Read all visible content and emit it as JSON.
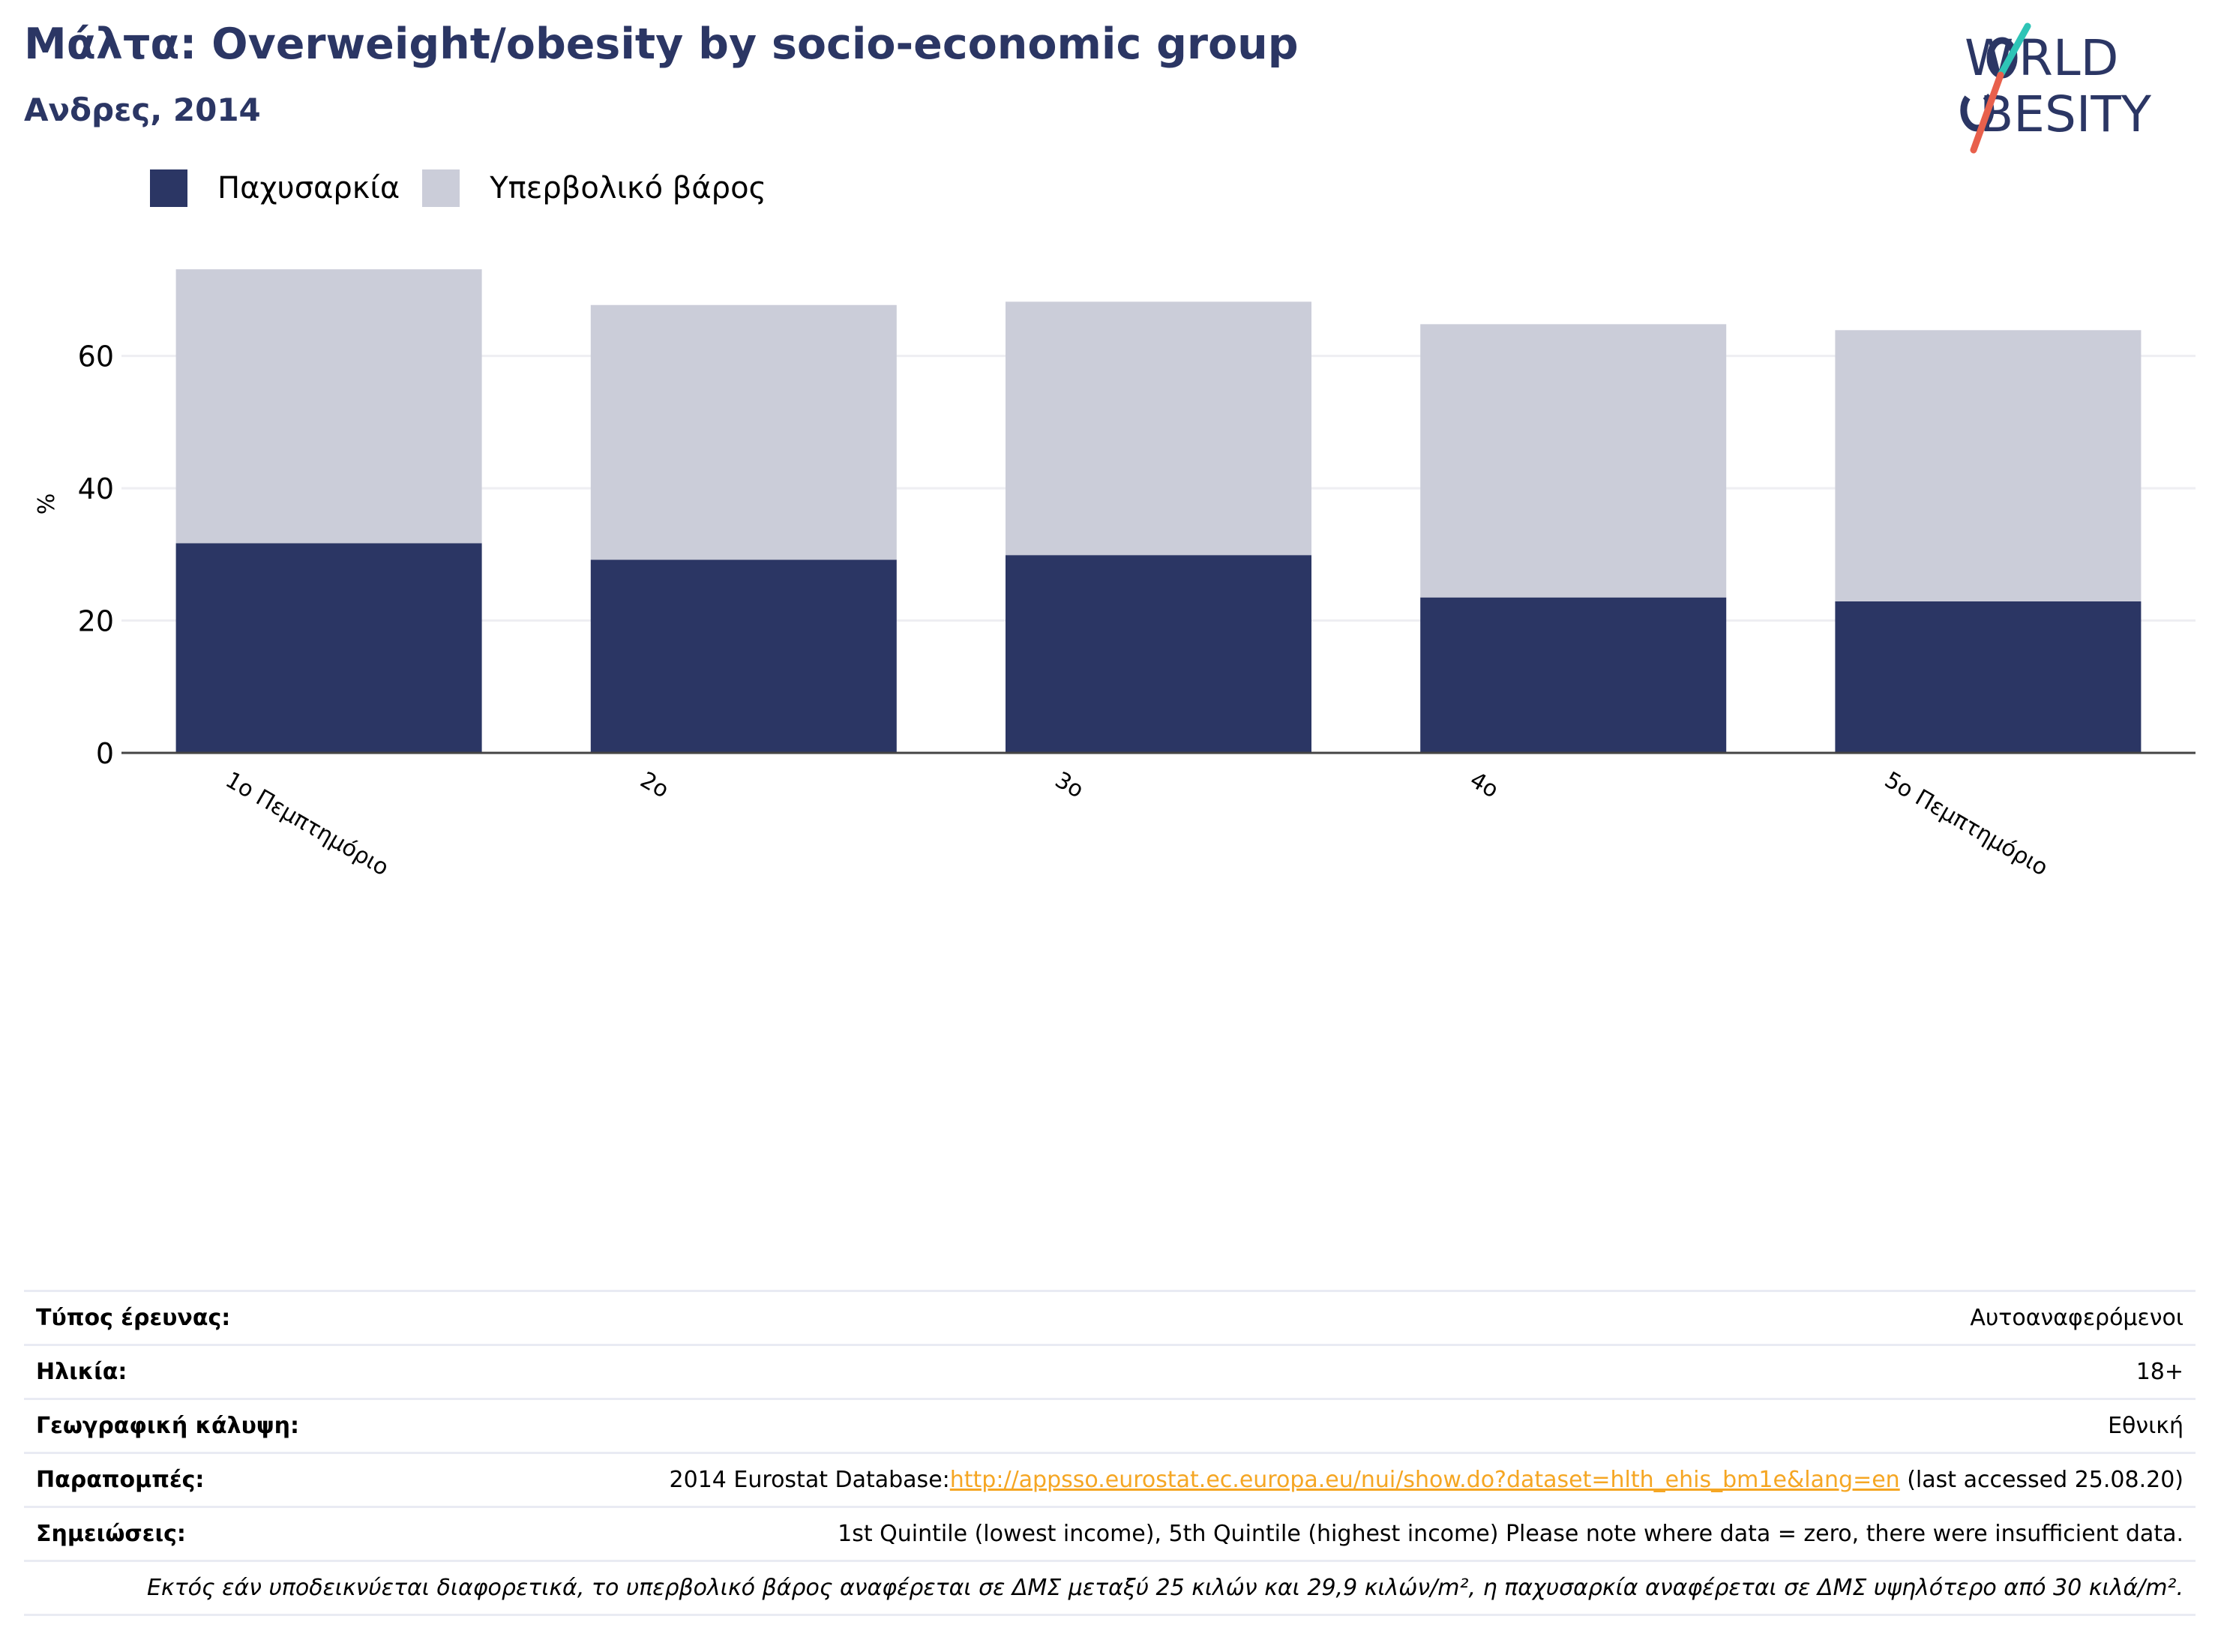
{
  "header": {
    "title": "Μάλτα: Overweight/obesity by socio-economic group",
    "subtitle": "Ανδρες, 2014",
    "logo_text": "WORLD OBESITY"
  },
  "colors": {
    "obesity": "#2b3664",
    "overweight": "#cbcdd9",
    "title": "#2b3664",
    "link": "#f5a623",
    "logo_teal": "#2ec4b6",
    "logo_coral": "#e8604c"
  },
  "chart_data": {
    "type": "bar",
    "stacked": true,
    "categories": [
      "1ο Πεμπτημόριο",
      "2ο",
      "3ο",
      "4ο",
      "5ο Πεμπτημόριο"
    ],
    "series": [
      {
        "name": "Παχυσαρκία",
        "values": [
          31.7,
          29.2,
          29.9,
          23.5,
          22.9
        ]
      },
      {
        "name": "Υπερβολικό βάρος",
        "values": [
          41.4,
          38.5,
          38.3,
          41.3,
          41.0
        ]
      }
    ],
    "ylabel": "%",
    "xlabel": "",
    "ylim": [
      0,
      73
    ],
    "yticks": [
      0,
      20,
      40,
      60
    ],
    "grid": true,
    "legend_position": "top-left"
  },
  "info": {
    "survey_type": {
      "label": "Τύπος έρευνας:",
      "value": "Αυτοαναφερόμενοι"
    },
    "age": {
      "label": "Ηλικία:",
      "value": "18+"
    },
    "coverage": {
      "label": "Γεωγραφική κάλυψη:",
      "value": "Εθνική"
    },
    "references": {
      "label": "Παραπομπές:",
      "prefix": "2014 Eurostat Database:",
      "link": "http://appsso.eurostat.ec.europa.eu/nui/show.do?dataset=hlth_ehis_bm1e&lang=en",
      "suffix": " (last accessed 25.08.20)"
    },
    "notes": {
      "label": "Σημειώσεις:",
      "value": "1st Quintile (lowest income), 5th Quintile (highest income) Please note where data = zero, there were insufficient data."
    },
    "definition": "Εκτός εάν υποδεικνύεται διαφορετικά, το υπερβολικό βάρος αναφέρεται σε ΔΜΣ μεταξύ 25 κιλών και 29,9 κιλών/m², η παχυσαρκία αναφέρεται σε ΔΜΣ υψηλότερο από 30 κιλά/m²."
  }
}
